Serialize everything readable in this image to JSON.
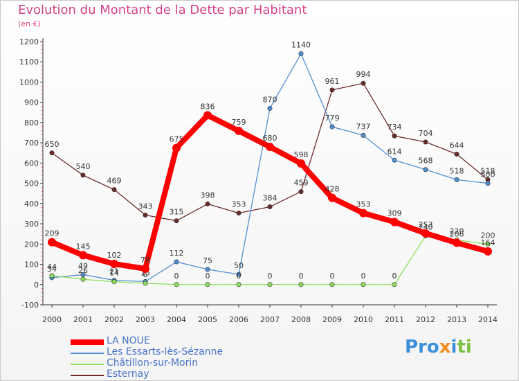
{
  "page": {
    "title": "Evolution du Montant de la Dette par Habitant",
    "unit": "(en €)",
    "logo": "Proxiti"
  },
  "colors": {
    "title": "#d4418a",
    "legend_text": "#4a73c9",
    "axis": "#333333"
  },
  "chart_data": {
    "type": "line",
    "title": "Evolution du Montant de la Dette par Habitant",
    "ylabel": "(en €)",
    "xlabel": "",
    "ylim": [
      -100,
      1200
    ],
    "y_ticks": [
      -100,
      0,
      100,
      200,
      300,
      400,
      500,
      600,
      700,
      800,
      900,
      1000,
      1100,
      1200
    ],
    "grid": false,
    "legend_position": "bottom-left",
    "x": [
      "2000",
      "2001",
      "2002",
      "2003",
      "2004",
      "2005",
      "2006",
      "2007",
      "2008",
      "2009",
      "2010",
      "2011",
      "2012",
      "2013",
      "2014"
    ],
    "series": [
      {
        "name": "LA NOUE",
        "color": "#ff0000",
        "values": [
          209,
          145,
          102,
          78,
          675,
          836,
          759,
          680,
          598,
          428,
          353,
          309,
          253,
          206,
          164
        ]
      },
      {
        "name": "Les Essarts-lès-Sézanne",
        "color": "#4f8fd0",
        "values": [
          34,
          49,
          21,
          15,
          112,
          75,
          50,
          870,
          1140,
          779,
          737,
          614,
          568,
          518,
          500
        ]
      },
      {
        "name": "Châtillon-sur-Morin",
        "color": "#8fdf5f",
        "values": [
          44,
          26,
          14,
          6,
          0,
          0,
          0,
          0,
          0,
          0,
          0,
          0,
          240,
          220,
          200
        ]
      },
      {
        "name": "Esternay",
        "color": "#6b2a2a",
        "values": [
          650,
          540,
          469,
          343,
          315,
          398,
          353,
          384,
          459,
          961,
          994,
          734,
          704,
          644,
          518
        ]
      }
    ]
  }
}
